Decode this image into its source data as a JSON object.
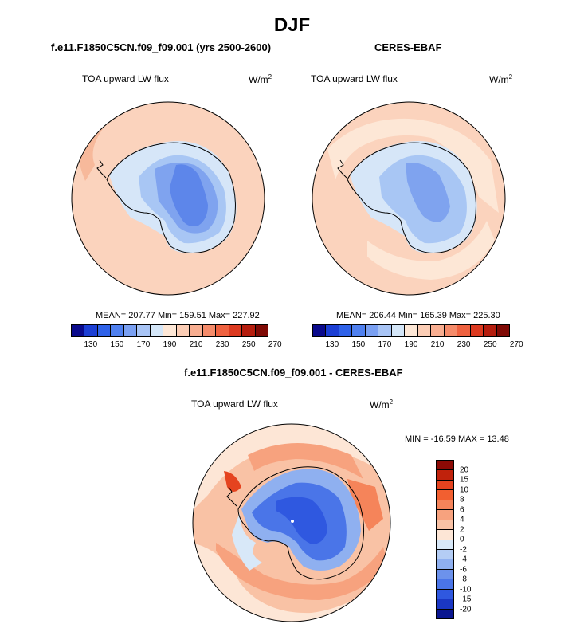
{
  "title": "DJF",
  "panels": [
    {
      "title": "f.e11.F1850C5CN.f09_f09.001 (yrs 2500-2600)",
      "variable": "TOA upward LW flux",
      "units_base": "W/m",
      "units_exp": "2",
      "stats": "MEAN= 207.77  Min= 159.51  Max= 227.92"
    },
    {
      "title": "CERES-EBAF",
      "variable": "TOA upward LW flux",
      "units_base": "W/m",
      "units_exp": "2",
      "stats": "MEAN= 206.44  Min= 165.39  Max= 225.30"
    },
    {
      "title": "f.e11.F1850C5CN.f09_f09.001 - CERES-EBAF",
      "variable": "TOA upward LW flux",
      "units_base": "W/m",
      "units_exp": "2",
      "stats": "MIN = -16.59 MAX =  13.48"
    }
  ],
  "colorbar_abs": {
    "ticks": [
      "130",
      "150",
      "170",
      "190",
      "210",
      "230",
      "250",
      "270"
    ],
    "colors": [
      "#0a0a8c",
      "#1c3fd4",
      "#2f62e8",
      "#4f80ef",
      "#7aa0f2",
      "#a8c4f5",
      "#d4e6f8",
      "#fde7d6",
      "#fbcdb5",
      "#f8ae91",
      "#f58b6a",
      "#ef6240",
      "#dc3a20",
      "#b51d0e",
      "#7f0a05"
    ]
  },
  "colorbar_diff": {
    "ticks": [
      "20",
      "15",
      "10",
      "8",
      "6",
      "4",
      "2",
      "0",
      "-2",
      "-4",
      "-6",
      "-8",
      "-10",
      "-15",
      "-20"
    ],
    "colors": [
      "#8c0a05",
      "#c0220c",
      "#e5431f",
      "#f25f30",
      "#f5845a",
      "#f7a27e",
      "#f9c2a5",
      "#fde6d6",
      "#d8e8f8",
      "#b4cdf5",
      "#8fb0f0",
      "#6c92ec",
      "#4a75e8",
      "#2f58e0",
      "#1a37c4",
      "#0a1690"
    ]
  }
}
